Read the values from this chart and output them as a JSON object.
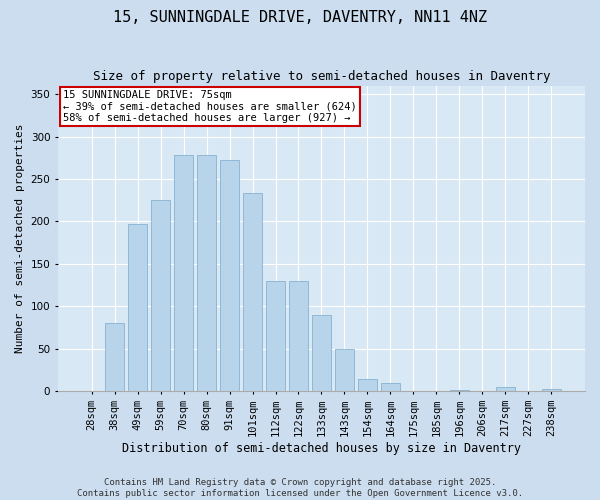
{
  "title_line1": "15, SUNNINGDALE DRIVE, DAVENTRY, NN11 4NZ",
  "title_line2": "Size of property relative to semi-detached houses in Daventry",
  "xlabel": "Distribution of semi-detached houses by size in Daventry",
  "ylabel": "Number of semi-detached properties",
  "categories": [
    "28sqm",
    "38sqm",
    "49sqm",
    "59sqm",
    "70sqm",
    "80sqm",
    "91sqm",
    "101sqm",
    "112sqm",
    "122sqm",
    "133sqm",
    "143sqm",
    "154sqm",
    "164sqm",
    "175sqm",
    "185sqm",
    "196sqm",
    "206sqm",
    "217sqm",
    "227sqm",
    "238sqm"
  ],
  "values": [
    0,
    80,
    197,
    225,
    278,
    278,
    272,
    233,
    130,
    130,
    90,
    50,
    15,
    10,
    0,
    0,
    1,
    0,
    5,
    0,
    3
  ],
  "bar_color": "#b8d4ea",
  "bar_edge_color": "#7aaacb",
  "annotation_box_text": "15 SUNNINGDALE DRIVE: 75sqm\n← 39% of semi-detached houses are smaller (624)\n58% of semi-detached houses are larger (927) →",
  "annotation_box_color": "#ffffff",
  "annotation_box_edge_color": "#cc0000",
  "ylim": [
    0,
    360
  ],
  "yticks": [
    0,
    50,
    100,
    150,
    200,
    250,
    300,
    350
  ],
  "background_color": "#ccddf0",
  "plot_background_color": "#d8e8f4",
  "grid_color": "#ffffff",
  "footer_line1": "Contains HM Land Registry data © Crown copyright and database right 2025.",
  "footer_line2": "Contains public sector information licensed under the Open Government Licence v3.0.",
  "title_fontsize": 11,
  "subtitle_fontsize": 9,
  "annotation_fontsize": 7.5,
  "ylabel_fontsize": 8,
  "xlabel_fontsize": 8.5,
  "footer_fontsize": 6.5,
  "tick_fontsize": 7.5
}
